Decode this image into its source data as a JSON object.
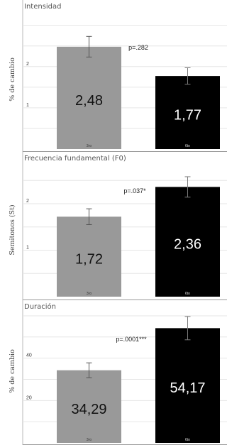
{
  "chart_data": [
    {
      "type": "bar",
      "title": "Intensidad",
      "ylabel": "% de cambio",
      "ylim": [
        0,
        3.2
      ],
      "yticks": [
        "1",
        "2"
      ],
      "ytick_values": [
        1,
        2
      ],
      "grid": true,
      "categories": [
        "3ro",
        "6to"
      ],
      "values": [
        2.48,
        1.77
      ],
      "value_labels": [
        "2,48",
        "1,77"
      ],
      "errors": [
        0.25,
        0.2
      ],
      "colors": [
        "#999999",
        "#000000"
      ],
      "annotation": "p=.282"
    },
    {
      "type": "bar",
      "title": "Frecuencia fundamental (F0)",
      "ylabel": "Semitonos (St)",
      "ylim": [
        0,
        2.9
      ],
      "yticks": [
        "1",
        "2"
      ],
      "ytick_values": [
        1,
        2
      ],
      "grid": true,
      "categories": [
        "3ro",
        "6to"
      ],
      "values": [
        1.72,
        2.36
      ],
      "value_labels": [
        "1,72",
        "2,36"
      ],
      "errors": [
        0.17,
        0.22
      ],
      "colors": [
        "#999999",
        "#000000"
      ],
      "annotation": "p=.037*"
    },
    {
      "type": "bar",
      "title": "Duración",
      "ylabel": "% de cambio",
      "ylim": [
        0,
        62
      ],
      "yticks": [
        "20",
        "40"
      ],
      "ytick_values": [
        20,
        40
      ],
      "grid": true,
      "categories": [
        "3ro",
        "6to"
      ],
      "values": [
        34.29,
        54.17
      ],
      "value_labels": [
        "34,29",
        "54,17"
      ],
      "errors": [
        3.5,
        5.5
      ],
      "colors": [
        "#999999",
        "#000000"
      ],
      "annotation": "p=.0001***"
    }
  ]
}
